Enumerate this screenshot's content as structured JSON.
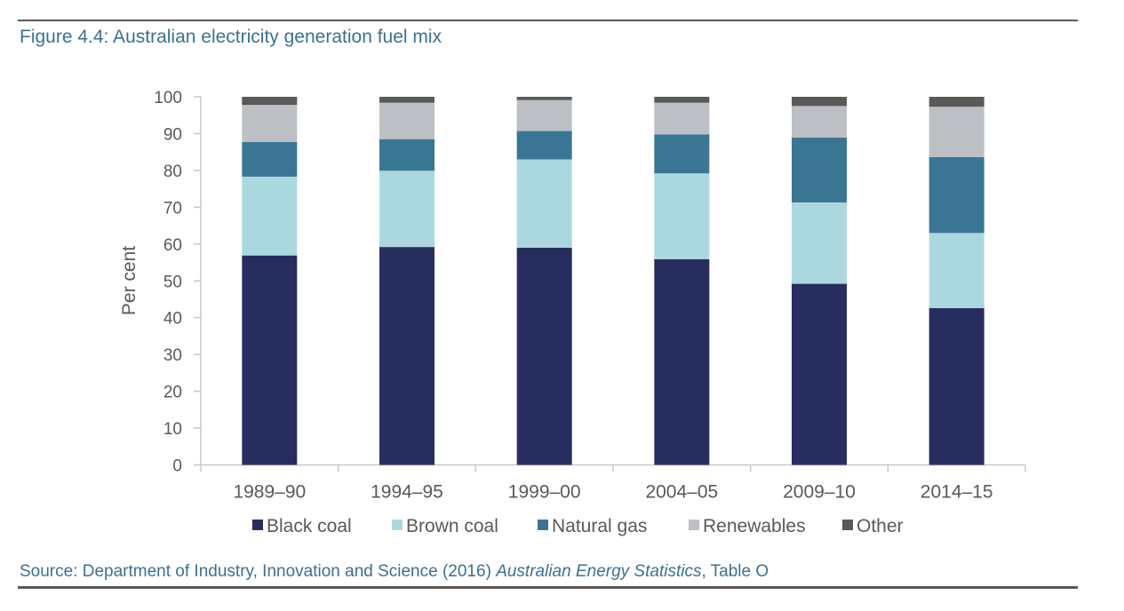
{
  "figure_title": "Figure 4.4: Australian electricity generation fuel mix",
  "source": {
    "prefix": "Source: Department of Industry, Innovation and Science (2016) ",
    "italic": "Australian Energy Statistics",
    "suffix": ", Table O"
  },
  "chart_data": {
    "type": "bar",
    "stacked": true,
    "title": "Figure 4.4: Australian electricity generation fuel mix",
    "xlabel": "",
    "ylabel": "Per cent",
    "ylim": [
      0,
      100
    ],
    "yticks": [
      0,
      10,
      20,
      30,
      40,
      50,
      60,
      70,
      80,
      90,
      100
    ],
    "grid": false,
    "legend_position": "bottom",
    "categories": [
      "1989–90",
      "1994–95",
      "1999–00",
      "2004–05",
      "2009–10",
      "2014–15"
    ],
    "series": [
      {
        "name": "Black coal",
        "color": "#282d60",
        "values": [
          56.9,
          59.2,
          59.0,
          55.9,
          49.2,
          42.6
        ]
      },
      {
        "name": "Brown coal",
        "color": "#abd8df",
        "values": [
          21.4,
          20.7,
          24.0,
          23.3,
          22.1,
          20.4
        ]
      },
      {
        "name": "Natural gas",
        "color": "#3a7694",
        "values": [
          9.4,
          8.6,
          7.7,
          10.6,
          17.6,
          20.6
        ]
      },
      {
        "name": "Renewables",
        "color": "#bcbfc3",
        "values": [
          10.1,
          9.9,
          8.4,
          8.6,
          8.6,
          13.7
        ]
      },
      {
        "name": "Other",
        "color": "#595959",
        "values": [
          2.2,
          1.6,
          0.9,
          1.6,
          2.5,
          2.7
        ]
      }
    ]
  }
}
